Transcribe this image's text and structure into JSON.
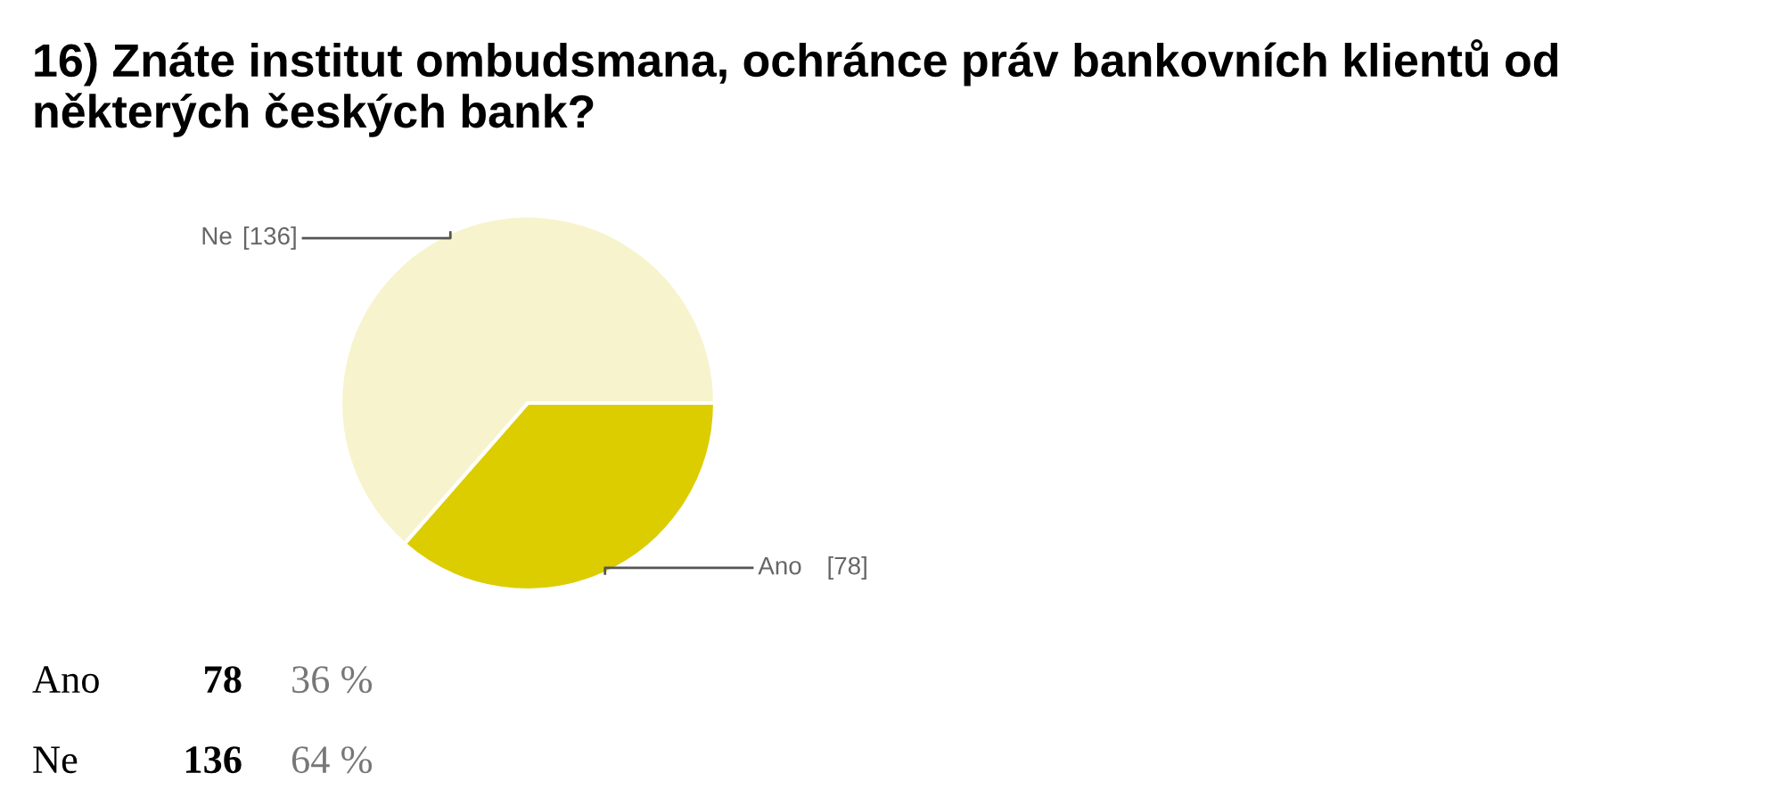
{
  "chart_data": {
    "type": "pie",
    "title": "16) Znáte institut ombudsmana, ochránce práv bankovních klientů od některých českých bank?",
    "categories": [
      "Ano",
      "Ne"
    ],
    "values": [
      78,
      136
    ],
    "colors": [
      "#dccd00",
      "#f7f3cc"
    ],
    "data_labels": true,
    "value_labels": [
      "[78]",
      "[136]"
    ],
    "annotations": [
      "78",
      "36 %",
      "136",
      "64 %"
    ]
  }
}
